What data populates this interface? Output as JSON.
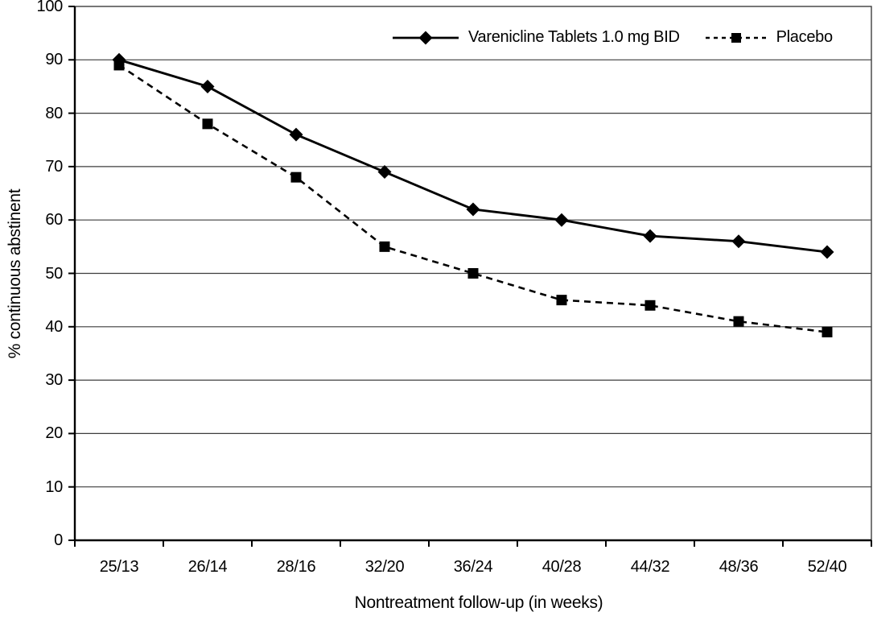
{
  "chart_data": {
    "type": "line",
    "title": "",
    "xlabel": "Nontreatment follow-up (in weeks)",
    "ylabel": "% continuous abstinent",
    "categories": [
      "25/13",
      "26/14",
      "28/16",
      "32/20",
      "36/24",
      "40/28",
      "44/32",
      "48/36",
      "52/40"
    ],
    "series": [
      {
        "name": "Varenicline Tablets 1.0 mg BID",
        "values": [
          90,
          85,
          76,
          69,
          62,
          60,
          57,
          56,
          54
        ],
        "line_style": "solid",
        "marker": "diamond",
        "color": "#000000"
      },
      {
        "name": "Placebo",
        "values": [
          89,
          78,
          68,
          55,
          50,
          45,
          44,
          41,
          39
        ],
        "line_style": "dashed",
        "marker": "square",
        "color": "#000000"
      }
    ],
    "ylim": [
      0,
      100
    ],
    "yticks": [
      0,
      10,
      20,
      30,
      40,
      50,
      60,
      70,
      80,
      90,
      100
    ],
    "grid": "horizontal",
    "legend_position": "top-inside"
  },
  "colors": {
    "line": "#000000",
    "grid": "#3d3d3d",
    "axis": "#000000",
    "text": "#000000",
    "background": "#ffffff"
  }
}
